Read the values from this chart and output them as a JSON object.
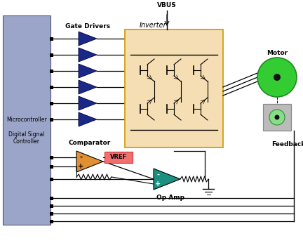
{
  "bg_color": "#ffffff",
  "mcu_color": "#9ba5c9",
  "inverter_bg": "#f5deb3",
  "inverter_border": "#cc9900",
  "motor_green": "#33cc33",
  "motor_dark": "#228822",
  "motor_center": "#111111",
  "encoder_bg": "#bbbbbb",
  "encoder_green": "#88dd88",
  "comparator_color": "#e09030",
  "vref_color": "#f07070",
  "opamp_color": "#1a9080",
  "gate_color": "#1a2888",
  "line_color": "#000000",
  "mcu_text": "Microcontroller\n\nDigital Signal\nController",
  "gate_label": "Gate Drivers",
  "inv_label": "Inverter",
  "vbus_label": "VBUS",
  "motor_label": "Motor",
  "comp_label": "Comparator",
  "vref_label": "VREF",
  "opamp_label": "Op Amp",
  "fb_label": "Feedback",
  "figsize": [
    4.32,
    3.46
  ],
  "dpi": 100
}
